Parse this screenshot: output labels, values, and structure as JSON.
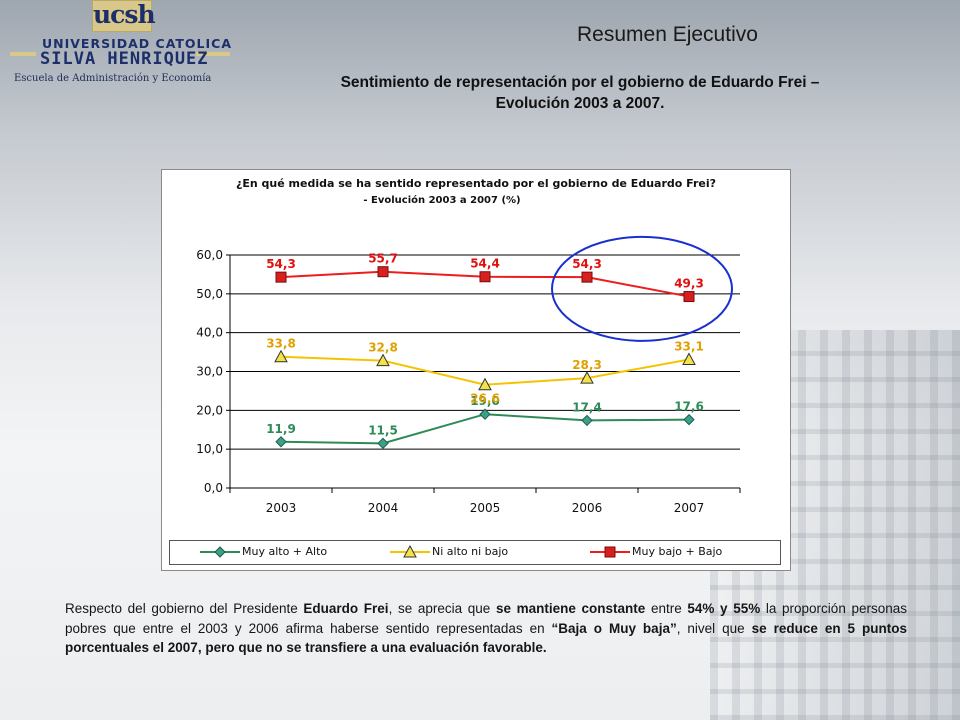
{
  "logo": {
    "short": "ucsh",
    "university": "UNIVERSIDAD CATOLICA",
    "name": "SILVA HENRIQUEZ",
    "school": "Escuela de Administración y Economía"
  },
  "header": {
    "title": "Resumen Ejecutivo",
    "subtitle_line1": "Sentimiento de representación por el gobierno de Eduardo Frei –",
    "subtitle_line2": "Evolución 2003 a 2007."
  },
  "chart_data": {
    "type": "line",
    "title": "¿En qué medida se ha sentido representado por el gobierno de Eduardo Frei?",
    "subtitle": "- Evolución 2003 a 2007 (%)",
    "categories": [
      "2003",
      "2004",
      "2005",
      "2006",
      "2007"
    ],
    "ylim": [
      0,
      60
    ],
    "yticks": [
      "0,0",
      "10,0",
      "20,0",
      "30,0",
      "40,0",
      "50,0",
      "60,0"
    ],
    "grid": true,
    "legend_position": "bottom",
    "series": [
      {
        "name": "Muy alto + Alto",
        "values": [
          11.9,
          11.5,
          19.0,
          17.4,
          17.6
        ],
        "labels": [
          "11,9",
          "11,5",
          "19,0",
          "17,4",
          "17,6"
        ],
        "color": "#2e8b57",
        "label_color": "#2e8b57",
        "marker": "diamond"
      },
      {
        "name": "Ni alto ni bajo",
        "values": [
          33.8,
          32.8,
          26.6,
          28.3,
          33.1
        ],
        "labels": [
          "33,8",
          "32,8",
          "26,6",
          "28,3",
          "33,1"
        ],
        "color": "#f5c400",
        "label_color": "#e0a000",
        "marker": "triangle"
      },
      {
        "name": "Muy bajo + Bajo",
        "values": [
          54.3,
          55.7,
          54.4,
          54.3,
          49.3
        ],
        "labels": [
          "54,3",
          "55,7",
          "54,4",
          "54,3",
          "49,3"
        ],
        "color": "#ee1c1c",
        "label_color": "#e01010",
        "marker": "square"
      }
    ],
    "highlight": {
      "categories": [
        "2006",
        "2007"
      ],
      "shape": "ellipse",
      "color": "#1a2fd0"
    }
  },
  "body": {
    "p1": "Respecto del gobierno del Presidente ",
    "b1": "Eduardo Frei",
    "p2": ", se aprecia que ",
    "b2": "se mantiene constante",
    "p3": " entre ",
    "b3": "54% y 55%",
    "p4": " la proporción personas pobres que entre el 2003 y 2006 afirma haberse sentido representadas en ",
    "b4": "“Baja o Muy baja”",
    "p5": ", nivel que ",
    "b5": "se reduce en 5 puntos porcentuales el 2007, pero que no se transfiere a una evaluación favorable."
  }
}
